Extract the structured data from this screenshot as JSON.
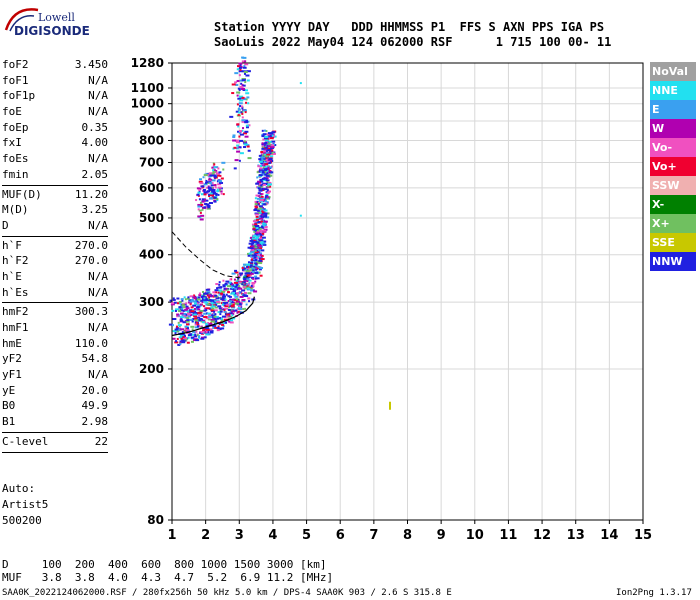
{
  "logo": {
    "top": "Lowell",
    "bottom": "DIGISONDE"
  },
  "header": {
    "line1": "Station YYYY DAY   DDD HHMMSS P1  FFS S AXN PPS IGA PS",
    "line2": "SaoLuis 2022 May04 124 062000 RSF      1 715 100 00- 11"
  },
  "params": [
    {
      "k": "foF2",
      "v": "3.450"
    },
    {
      "k": "foF1",
      "v": "N/A"
    },
    {
      "k": "foF1p",
      "v": "N/A"
    },
    {
      "k": "foE",
      "v": "N/A"
    },
    {
      "k": "foEp",
      "v": "0.35"
    },
    {
      "k": "fxI",
      "v": "4.00"
    },
    {
      "k": "foEs",
      "v": "N/A"
    },
    {
      "k": "fmin",
      "v": "2.05"
    },
    {
      "sep": true
    },
    {
      "k": "MUF(D)",
      "v": "11.20"
    },
    {
      "k": "M(D)",
      "v": "3.25"
    },
    {
      "k": "D",
      "v": "N/A"
    },
    {
      "sep": true
    },
    {
      "k": "h`F",
      "v": "270.0"
    },
    {
      "k": "h`F2",
      "v": "270.0"
    },
    {
      "k": "h`E",
      "v": "N/A"
    },
    {
      "k": "h`Es",
      "v": "N/A"
    },
    {
      "sep": true
    },
    {
      "k": "hmF2",
      "v": "300.3"
    },
    {
      "k": "hmF1",
      "v": "N/A"
    },
    {
      "k": "hmE",
      "v": "110.0"
    },
    {
      "k": "yF2",
      "v": "54.8"
    },
    {
      "k": "yF1",
      "v": "N/A"
    },
    {
      "k": "yE",
      "v": "20.0"
    },
    {
      "k": "B0",
      "v": "49.9"
    },
    {
      "k": "B1",
      "v": "2.98"
    },
    {
      "sep": true
    },
    {
      "k": "C-level",
      "v": "22"
    },
    {
      "sep": true
    }
  ],
  "auto": [
    "Auto:",
    "Artist5",
    "500200"
  ],
  "footer": {
    "d_line": "D     100  200  400  600  800 1000 1500 3000 [km]",
    "muf_line": "MUF   3.8  3.8  4.0  4.3  4.7  5.2  6.9 11.2 [MHz]",
    "file_line": "SAA0K_2022124062000.RSF / 280fx256h 50 kHz 5.0 km / DPS-4 SAA0K 903 / 2.6 S 315.8 E",
    "version": "Ion2Png 1.3.17"
  },
  "legend": [
    {
      "label": "NoVal",
      "color": "#a0a0a0"
    },
    {
      "label": "NNE",
      "color": "#22e0f0"
    },
    {
      "label": "E",
      "color": "#3aa0f0"
    },
    {
      "label": "W",
      "color": "#b000b0"
    },
    {
      "label": "Vo-",
      "color": "#f050c0"
    },
    {
      "label": "Vo+",
      "color": "#f00030"
    },
    {
      "label": "SSW",
      "color": "#f0b0b0"
    },
    {
      "label": "X-",
      "color": "#008000"
    },
    {
      "label": "X+",
      "color": "#70c060"
    },
    {
      "label": "SSE",
      "color": "#c8c800"
    },
    {
      "label": "NNW",
      "color": "#2020e0"
    }
  ],
  "chart_data": {
    "type": "scatter",
    "title": "",
    "xlabel": "",
    "ylabel": "",
    "xlim": [
      1,
      15
    ],
    "ylim": [
      80,
      1280
    ],
    "y_scale": "log",
    "grid": true,
    "x_ticks": [
      1,
      2,
      3,
      4,
      5,
      6,
      7,
      8,
      9,
      10,
      11,
      12,
      13,
      14,
      15
    ],
    "y_ticks": [
      80,
      200,
      300,
      400,
      500,
      600,
      700,
      800,
      900,
      1000,
      1100,
      1280
    ],
    "trace_band": [
      [
        1.05,
        270
      ],
      [
        1.3,
        272
      ],
      [
        1.6,
        276
      ],
      [
        1.9,
        282
      ],
      [
        2.2,
        290
      ],
      [
        2.5,
        300
      ],
      [
        2.8,
        312
      ],
      [
        3.0,
        325
      ],
      [
        3.2,
        345
      ],
      [
        3.35,
        370
      ],
      [
        3.45,
        400
      ],
      [
        3.5,
        430
      ],
      [
        3.55,
        470
      ],
      [
        3.6,
        520
      ],
      [
        3.65,
        580
      ],
      [
        3.7,
        640
      ],
      [
        3.75,
        700
      ],
      [
        3.8,
        760
      ],
      [
        3.85,
        820
      ]
    ],
    "upper_patch": [
      [
        1.8,
        560
      ],
      [
        2.0,
        590
      ],
      [
        2.2,
        620
      ],
      [
        2.4,
        640
      ]
    ],
    "high_spike": [
      [
        2.8,
        900
      ],
      [
        3.0,
        1000
      ],
      [
        3.1,
        1100
      ],
      [
        3.2,
        980
      ]
    ],
    "cyan_dots": [
      [
        4.8,
        1140
      ],
      [
        4.8,
        510
      ],
      [
        2.7,
        340
      ]
    ],
    "yellow_dots": [
      [
        7.45,
        160
      ]
    ],
    "profile_curve": [
      [
        1.0,
        245
      ],
      [
        1.5,
        250
      ],
      [
        2.0,
        258
      ],
      [
        2.5,
        266
      ],
      [
        2.9,
        275
      ],
      [
        3.2,
        285
      ],
      [
        3.4,
        298
      ],
      [
        3.45,
        310
      ]
    ],
    "dashed_curve": [
      [
        1.0,
        460
      ],
      [
        1.4,
        420
      ],
      [
        1.8,
        390
      ],
      [
        2.2,
        365
      ],
      [
        2.6,
        352
      ],
      [
        3.0,
        348
      ],
      [
        3.3,
        350
      ]
    ]
  }
}
